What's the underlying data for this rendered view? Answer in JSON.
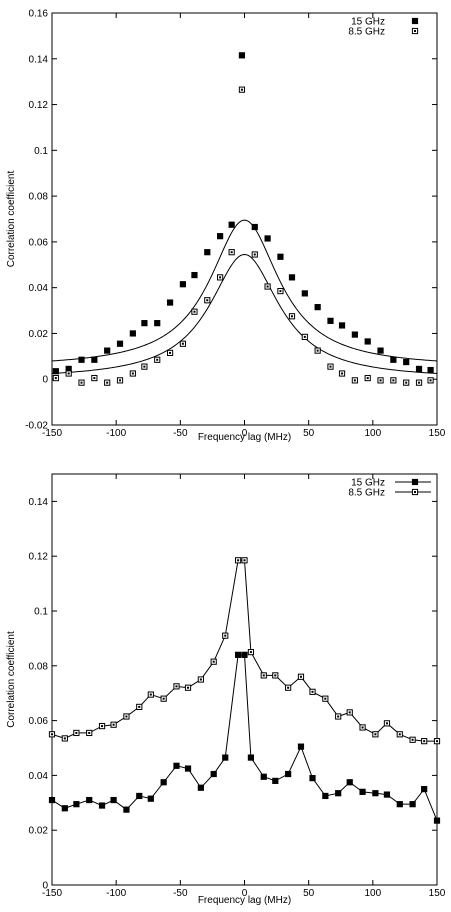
{
  "chart_data": [
    {
      "type": "scatter",
      "title": "",
      "xlabel": "Frequency lag (MHz)",
      "ylabel": "Correlation coefficient",
      "xlim": [
        -150,
        150
      ],
      "ylim": [
        -0.02,
        0.16
      ],
      "xticks": [
        -150,
        -100,
        -50,
        0,
        50,
        100,
        150
      ],
      "xtick_labels": [
        "-150",
        "-100",
        "-50",
        "0",
        "50",
        "100",
        "150"
      ],
      "yticks": [
        -0.02,
        0,
        0.02,
        0.04,
        0.06,
        0.08,
        0.1,
        0.12,
        0.14,
        0.16
      ],
      "ytick_labels": [
        "-0.02",
        "0",
        "0.02",
        "0.04",
        "0.06",
        "0.08",
        "0.1",
        "0.12",
        "0.14",
        "0.16"
      ],
      "legend_position": "top-right",
      "grid": false,
      "series": [
        {
          "name": "15 GHz",
          "marker": "filled-square",
          "x": [
            -147,
            -137,
            -127,
            -117,
            -107,
            -97,
            -87,
            -78,
            -68,
            -58,
            -48,
            -39,
            -29,
            -19,
            -10,
            -2,
            8,
            18,
            28,
            37,
            47,
            57,
            67,
            76,
            86,
            96,
            106,
            116,
            126,
            136,
            145
          ],
          "y": [
            0.0035,
            0.0045,
            0.0085,
            0.0085,
            0.0125,
            0.0155,
            0.02,
            0.0245,
            0.0245,
            0.0335,
            0.0415,
            0.0455,
            0.0555,
            0.0625,
            0.0675,
            0.1415,
            0.0665,
            0.0615,
            0.0535,
            0.0445,
            0.0375,
            0.0315,
            0.0255,
            0.0235,
            0.0195,
            0.0165,
            0.0125,
            0.0085,
            0.0075,
            0.0045,
            0.004
          ]
        },
        {
          "name": "8.5 GHz",
          "marker": "open-square",
          "x": [
            -147,
            -137,
            -127,
            -117,
            -107,
            -97,
            -87,
            -78,
            -68,
            -58,
            -48,
            -39,
            -29,
            -19,
            -10,
            -2,
            8,
            18,
            28,
            37,
            47,
            57,
            67,
            76,
            86,
            96,
            106,
            116,
            126,
            136,
            145
          ],
          "y": [
            0.0005,
            0.0025,
            -0.0015,
            0.0005,
            -0.0015,
            -0.0005,
            0.0025,
            0.0055,
            0.0085,
            0.0115,
            0.0155,
            0.0295,
            0.0345,
            0.0445,
            0.0555,
            0.1265,
            0.0545,
            0.0405,
            0.0385,
            0.0275,
            0.0185,
            0.0125,
            0.0055,
            0.0025,
            -0.0005,
            0.0005,
            -0.0005,
            -0.0005,
            -0.0015,
            -0.0015,
            -0.0005
          ]
        }
      ],
      "fit_curves": [
        {
          "series": "15 GHz",
          "amplitude": 0.0645,
          "offset": 0.005,
          "hwhm": 33
        },
        {
          "series": "8.5 GHz",
          "amplitude": 0.0545,
          "offset": 0.0,
          "hwhm": 33
        }
      ]
    },
    {
      "type": "line",
      "title": "",
      "xlabel": "Frequency lag (MHz)",
      "ylabel": "Correlation coefficient",
      "xlim": [
        -150,
        150
      ],
      "ylim": [
        0,
        0.15
      ],
      "xticks": [
        -150,
        -100,
        -50,
        0,
        50,
        100,
        150
      ],
      "xtick_labels": [
        "-150",
        "-100",
        "-50",
        "0",
        "50",
        "100",
        "150"
      ],
      "yticks": [
        0,
        0.02,
        0.04,
        0.06,
        0.08,
        0.1,
        0.12,
        0.14
      ],
      "ytick_labels": [
        "0",
        "0.02",
        "0.04",
        "0.06",
        "0.08",
        "0.1",
        "0.12",
        "0.14"
      ],
      "legend_position": "top-right",
      "grid": false,
      "series": [
        {
          "name": "15 GHz",
          "marker": "filled-square",
          "x": [
            -150,
            -140,
            -131,
            -121,
            -111,
            -102,
            -92,
            -82,
            -73,
            -63,
            -53,
            -44,
            -34,
            -24,
            -15,
            -5,
            0,
            5,
            15,
            24,
            34,
            44,
            53,
            63,
            73,
            82,
            92,
            102,
            111,
            121,
            131,
            140,
            150
          ],
          "y": [
            0.031,
            0.028,
            0.0295,
            0.031,
            0.029,
            0.031,
            0.0275,
            0.0325,
            0.0315,
            0.0375,
            0.0435,
            0.0425,
            0.0355,
            0.0405,
            0.0465,
            0.084,
            0.084,
            0.0465,
            0.0395,
            0.038,
            0.0405,
            0.0505,
            0.039,
            0.0325,
            0.0335,
            0.0375,
            0.034,
            0.0335,
            0.033,
            0.0295,
            0.0295,
            0.035,
            0.0235
          ]
        },
        {
          "name": "8.5 GHz",
          "marker": "open-square",
          "x": [
            -150,
            -140,
            -131,
            -121,
            -111,
            -102,
            -92,
            -82,
            -73,
            -63,
            -53,
            -44,
            -34,
            -24,
            -15,
            -5,
            0,
            5,
            15,
            24,
            34,
            44,
            53,
            63,
            73,
            82,
            92,
            102,
            111,
            121,
            131,
            140,
            150
          ],
          "y": [
            0.055,
            0.0535,
            0.0555,
            0.0555,
            0.058,
            0.0585,
            0.0615,
            0.065,
            0.0695,
            0.068,
            0.0725,
            0.072,
            0.075,
            0.0815,
            0.091,
            0.1185,
            0.1185,
            0.085,
            0.0765,
            0.0765,
            0.072,
            0.076,
            0.0705,
            0.068,
            0.0615,
            0.063,
            0.0575,
            0.055,
            0.059,
            0.055,
            0.053,
            0.0525,
            0.0525
          ]
        }
      ]
    }
  ]
}
